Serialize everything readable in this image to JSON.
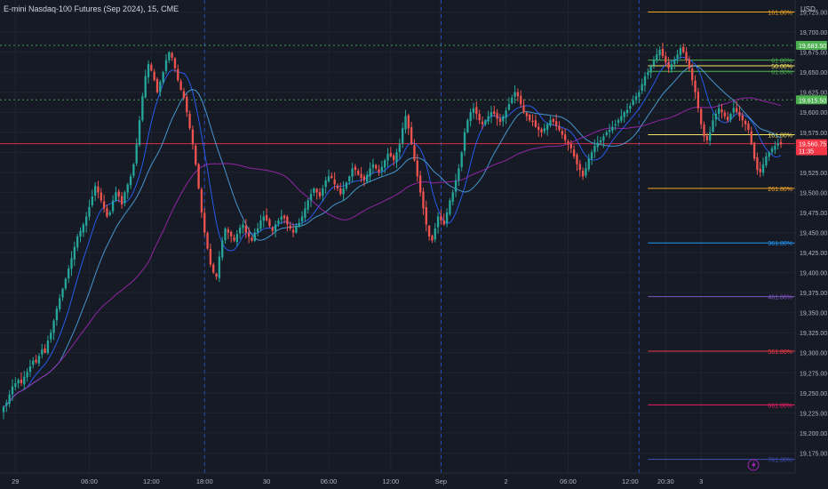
{
  "header": {
    "title": "E-mini Nasdaq-100 Futures (Sep 2024), 15, CME"
  },
  "chart_data": {
    "type": "candlestick",
    "currency": "USD",
    "ylim": [
      19150,
      19740
    ],
    "y_ticks": [
      19725,
      19700,
      19675,
      19650,
      19625,
      19600,
      19575,
      19550,
      19525,
      19500,
      19475,
      19450,
      19425,
      19400,
      19375,
      19350,
      19325,
      19300,
      19275,
      19250,
      19225,
      19200,
      19175
    ],
    "y_tick_labels": [
      "19,725.00",
      "19,700.00",
      "19,675.00",
      "19,650.00",
      "19,625.00",
      "19,600.00",
      "19,575.00",
      "19,550.00",
      "19,525.00",
      "19,500.00",
      "19,475.00",
      "19,450.00",
      "19,425.00",
      "19,400.00",
      "19,375.00",
      "19,350.00",
      "19,325.00",
      "19,300.00",
      "19,275.00",
      "19,250.00",
      "19,225.00",
      "19,200.00",
      "19,175.00"
    ],
    "x_tick_labels": [
      "29",
      "06:00",
      "12:00",
      "18:00",
      "30",
      "06:00",
      "12:00",
      "Sep",
      "2",
      "06:00",
      "12:00",
      "20:30",
      "3"
    ],
    "x_tick_bars": [
      4,
      29,
      50,
      68,
      89,
      110,
      131,
      148,
      170,
      191,
      212,
      224,
      236
    ],
    "session_separators": [
      68,
      148,
      215
    ],
    "price_tags": [
      {
        "label": "19,683.50",
        "value": 19683.5,
        "color": "#4caf50"
      },
      {
        "label": "19,615.50",
        "value": 19615.5,
        "color": "#4caf50"
      },
      {
        "label": "19,560.75",
        "value": 19560.75,
        "color": "#f23645",
        "sub": "11:35"
      }
    ],
    "horizontal_levels": [
      {
        "value": 19683.5,
        "color": "#4caf50",
        "style": "dotted"
      },
      {
        "value": 19615.5,
        "color": "#4caf50",
        "style": "dotted"
      },
      {
        "value": 19560.75,
        "color": "#f23645",
        "style": "solid"
      }
    ],
    "fib_levels": [
      {
        "label": "161.80%",
        "value": 19725,
        "color": "#f5a623"
      },
      {
        "label": "61.80%",
        "value": 19665,
        "color": "#4caf50"
      },
      {
        "label": "50.00%",
        "value": 19658,
        "color": "#f5e663"
      },
      {
        "label": "61.80%",
        "value": 19651,
        "color": "#4caf50"
      },
      {
        "label": "161.80%",
        "value": 19572,
        "color": "#f5e663"
      },
      {
        "label": "261.80%",
        "value": 19505,
        "color": "#f5a623"
      },
      {
        "label": "361.80%",
        "value": 19437,
        "color": "#2196f3"
      },
      {
        "label": "461.80%",
        "value": 19370,
        "color": "#7e57c2"
      },
      {
        "label": "561.80%",
        "value": 19302,
        "color": "#f23645"
      },
      {
        "label": "661.80%",
        "value": 19235,
        "color": "#e91e63"
      },
      {
        "label": "761.80%",
        "value": 19167,
        "color": "#3f51b5"
      }
    ],
    "colors": {
      "up": "#26a69a",
      "down": "#ef5350",
      "ma_fast": "#2962ff",
      "ma_mid": "#4aa3df",
      "ma_slow": "#9c27b0"
    },
    "series": [
      {
        "name": "close",
        "values": [
          19232,
          19238,
          19248,
          19258,
          19262,
          19266,
          19262,
          19270,
          19276,
          19283,
          19290,
          19288,
          19296,
          19304,
          19300,
          19315,
          19325,
          19340,
          19355,
          19368,
          19380,
          19392,
          19405,
          19418,
          19432,
          19445,
          19452,
          19460,
          19470,
          19482,
          19495,
          19508,
          19500,
          19490,
          19480,
          19470,
          19475,
          19490,
          19500,
          19495,
          19485,
          19500,
          19510,
          19520,
          19535,
          19560,
          19590,
          19620,
          19645,
          19660,
          19652,
          19640,
          19625,
          19638,
          19650,
          19665,
          19675,
          19668,
          19655,
          19640,
          19628,
          19618,
          19600,
          19580,
          19560,
          19535,
          19505,
          19475,
          19450,
          19430,
          19410,
          19400,
          19395,
          19420,
          19440,
          19455,
          19450,
          19445,
          19440,
          19448,
          19456,
          19460,
          19450,
          19445,
          19440,
          19450,
          19455,
          19465,
          19470,
          19465,
          19458,
          19452,
          19460,
          19465,
          19470,
          19468,
          19460,
          19455,
          19450,
          19458,
          19462,
          19470,
          19480,
          19490,
          19498,
          19505,
          19500,
          19495,
          19505,
          19515,
          19520,
          19518,
          19510,
          19505,
          19498,
          19505,
          19512,
          19520,
          19530,
          19528,
          19522,
          19518,
          19515,
          19522,
          19530,
          19535,
          19530,
          19525,
          19532,
          19540,
          19548,
          19545,
          19540,
          19550,
          19560,
          19580,
          19595,
          19580,
          19560,
          19540,
          19520,
          19500,
          19480,
          19460,
          19445,
          19440,
          19455,
          19470,
          19465,
          19460,
          19475,
          19490,
          19500,
          19515,
          19530,
          19550,
          19575,
          19590,
          19600,
          19605,
          19598,
          19590,
          19585,
          19590,
          19595,
          19600,
          19598,
          19592,
          19588,
          19595,
          19602,
          19610,
          19618,
          19625,
          19620,
          19610,
          19600,
          19595,
          19590,
          19588,
          19582,
          19578,
          19575,
          19580,
          19585,
          19590,
          19588,
          19583,
          19578,
          19572,
          19565,
          19560,
          19555,
          19545,
          19535,
          19528,
          19520,
          19530,
          19542,
          19550,
          19558,
          19562,
          19565,
          19570,
          19575,
          19578,
          19582,
          19585,
          19590,
          19595,
          19600,
          19603,
          19608,
          19615,
          19620,
          19625,
          19635,
          19645,
          19650,
          19658,
          19665,
          19672,
          19678,
          19670,
          19662,
          19655,
          19660,
          19666,
          19672,
          19680,
          19675,
          19665,
          19655,
          19640,
          19625,
          19605,
          19585,
          19570,
          19565,
          19575,
          19590,
          19598,
          19605,
          19600,
          19595,
          19590,
          19598,
          19605,
          19600,
          19595,
          19590,
          19585,
          19578,
          19560,
          19542,
          19528,
          19525,
          19535,
          19545,
          19550,
          19555,
          19558,
          19561,
          19560
        ]
      }
    ]
  },
  "watermark": {
    "icon": "lightning-icon"
  }
}
